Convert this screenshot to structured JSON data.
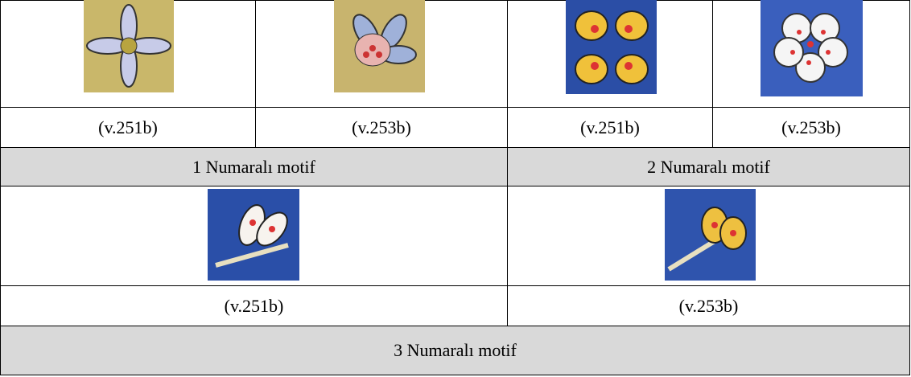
{
  "table": {
    "rows": [
      [
        "(v.251b)",
        "(v.253b)",
        "(v.251b)",
        "(v.253b)"
      ],
      [
        "1 Numaralı motif",
        "2 Numaralı motif"
      ],
      [
        "(v.251b)",
        "(v.253b)"
      ],
      [
        "3 Numaralı motif"
      ]
    ]
  }
}
